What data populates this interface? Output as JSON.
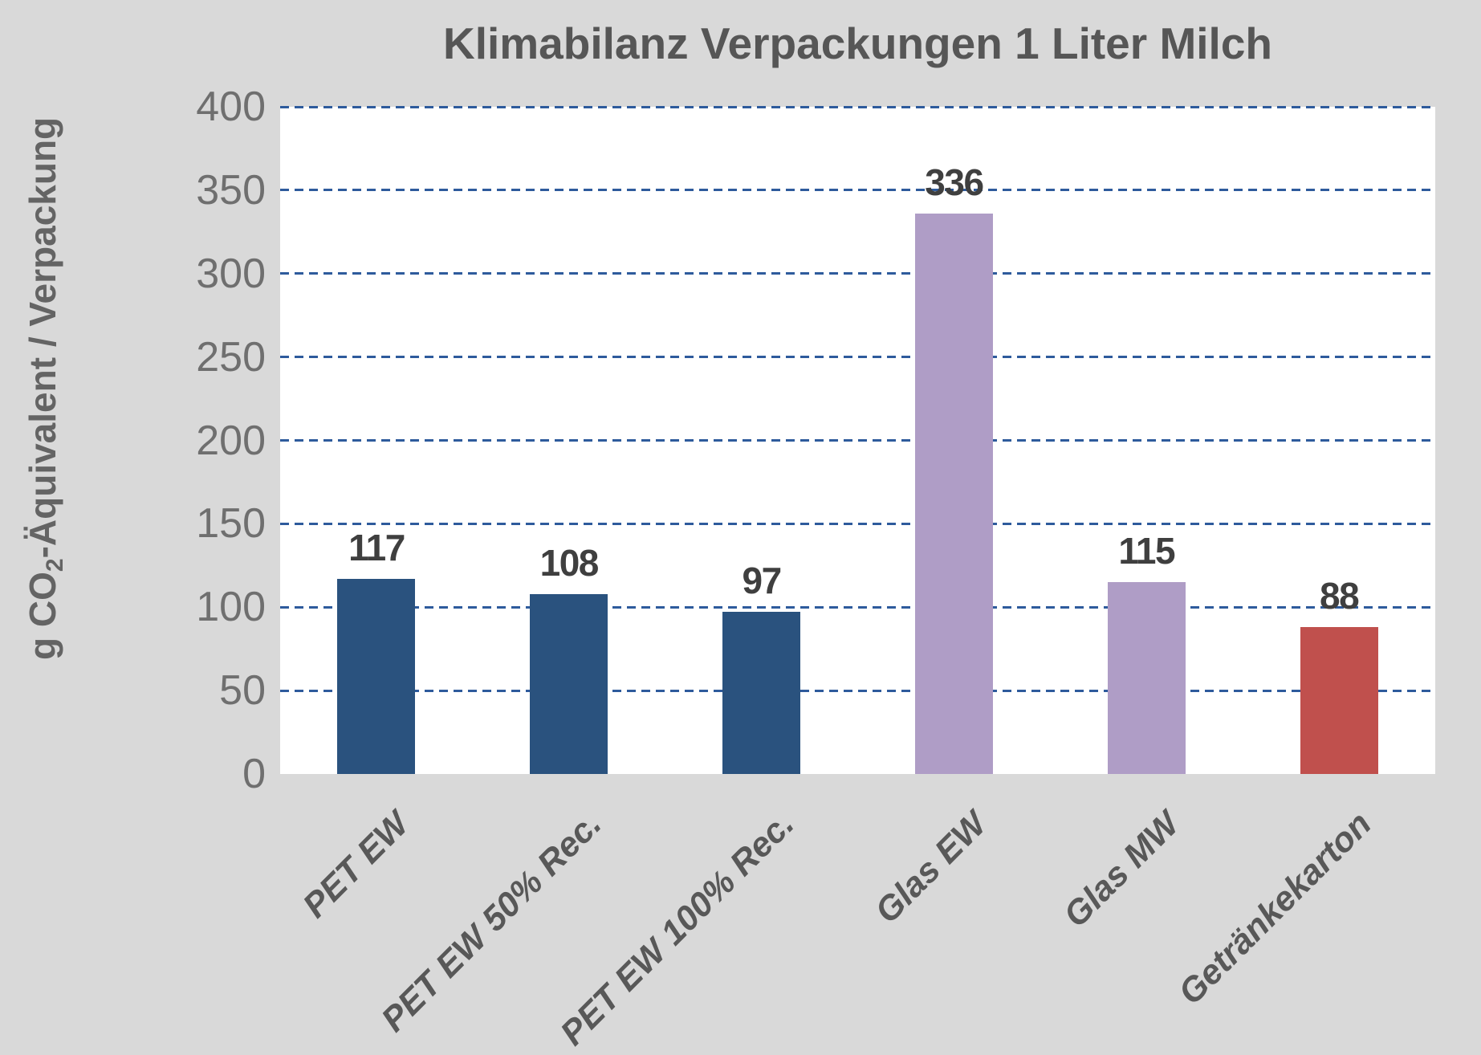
{
  "chart_data": {
    "type": "bar",
    "title": "Klimabilanz Verpackungen 1 Liter Milch",
    "categories": [
      "PET EW",
      "PET EW 50% Rec.",
      "PET EW 100% Rec.",
      "Glas EW",
      "Glas MW",
      "Getränkekarton"
    ],
    "values": [
      117,
      108,
      97,
      336,
      115,
      88
    ],
    "data_labels": [
      "117",
      "108",
      "97",
      "336",
      "115",
      "88"
    ],
    "bar_colors": [
      "#2a527e",
      "#2a527e",
      "#2a527e",
      "#af9dc6",
      "#af9dc6",
      "#c0504d"
    ],
    "ylabel": "g CO₂-Äquivalent / Verpackung",
    "ylabel_parts": {
      "prefix": "g CO",
      "sub": "2",
      "suffix": "-Äquivalent / Verpackung"
    },
    "xlabel": "",
    "ylim": [
      0,
      400
    ],
    "ytick_interval": 50,
    "yticks": [
      400,
      350,
      300,
      250,
      200,
      150,
      100,
      50,
      0
    ],
    "grid": "horizontal-dashed",
    "legend": "none"
  },
  "colors": {
    "page_background": "#d9d9d9",
    "plot_background": "#ffffff",
    "gridline_blue": "#2e5b9c",
    "title_text": "#565656",
    "tick_text": "#6f6f6f",
    "data_label_text": "#3f3f3f",
    "category_label_text": "#585858",
    "axis_title_text": "#646464",
    "bar_blue": "#2a527e",
    "bar_purple": "#af9dc6",
    "bar_red": "#c0504d"
  }
}
